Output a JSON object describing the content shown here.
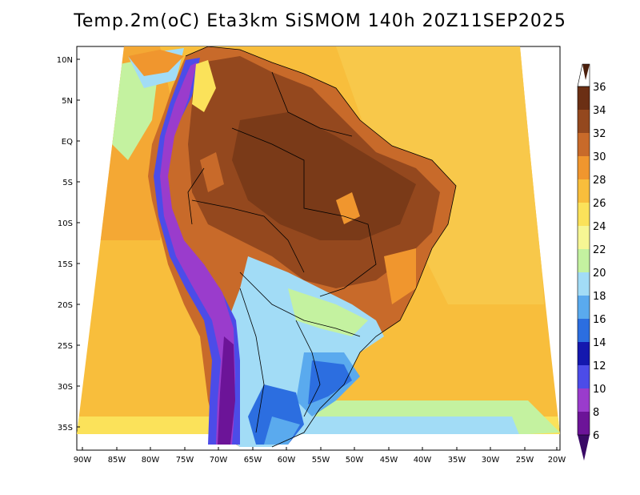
{
  "title": "Temp.2m(oC) Eta3km SiSMOM 140h 20Z11SEP2025",
  "axes": {
    "y_ticks": [
      "10N",
      "5N",
      "EQ",
      "5S",
      "10S",
      "15S",
      "20S",
      "25S",
      "30S",
      "35S"
    ],
    "x_ticks": [
      "90W",
      "85W",
      "80W",
      "75W",
      "70W",
      "65W",
      "60W",
      "55W",
      "50W",
      "45W",
      "40W",
      "35W",
      "30W",
      "25W",
      "20W"
    ]
  },
  "colorbar": {
    "labels": [
      "36",
      "34",
      "32",
      "30",
      "28",
      "26",
      "24",
      "22",
      "20",
      "18",
      "16",
      "14",
      "12",
      "10",
      "8",
      "6"
    ],
    "colors": {
      "c34_36": "#6b2f14",
      "c32_34": "#94481e",
      "c30_32": "#c86a2a",
      "c28_30": "#f0962e",
      "c26_28": "#f8be3c",
      "c24_26": "#fbe25a",
      "c22_24": "#f6f694",
      "c20_22": "#c4f2a0",
      "c18_20": "#a2dcf6",
      "c16_18": "#5aaaee",
      "c14_16": "#2c6ee0",
      "c12_14": "#1418ae",
      "c10_12": "#4c4ce8",
      "c8_10": "#9a3ccc",
      "c6_8": "#6c1498",
      "below_6": "#3a0a66",
      "above_36": "#4a1e0a"
    }
  }
}
